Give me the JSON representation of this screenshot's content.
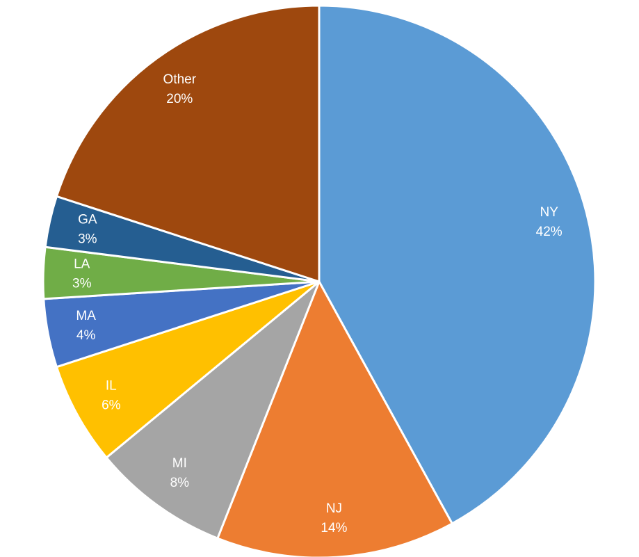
{
  "chart_data": {
    "type": "pie",
    "categories": [
      "NY",
      "NJ",
      "MI",
      "IL",
      "MA",
      "LA",
      "GA",
      "Other"
    ],
    "values": [
      42,
      14,
      8,
      6,
      4,
      3,
      3,
      20
    ],
    "value_labels": [
      "42%",
      "14%",
      "8%",
      "6%",
      "4%",
      "3%",
      "3%",
      "20%"
    ],
    "colors": [
      "#5b9bd5",
      "#ed7d31",
      "#a5a5a5",
      "#ffc000",
      "#4472c4",
      "#70ad47",
      "#255e91",
      "#9e480e"
    ]
  }
}
